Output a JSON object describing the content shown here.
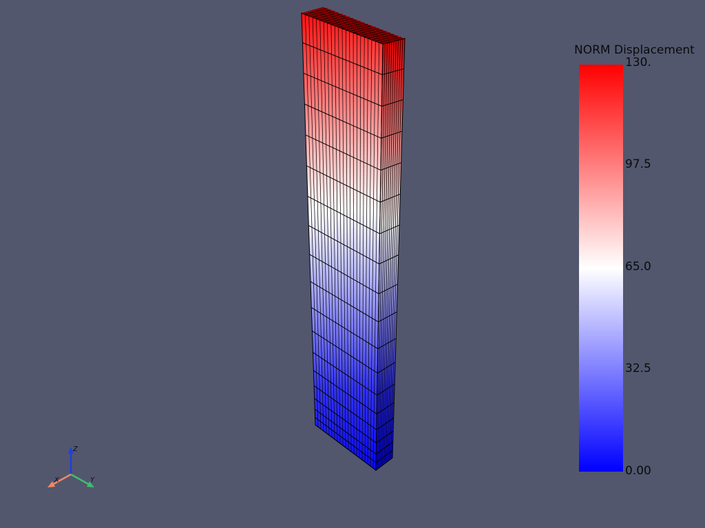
{
  "colorbar": {
    "title": "NORM Displacement",
    "ticks": [
      "130.",
      "97.5",
      "65.0",
      "32.5",
      "0.00"
    ],
    "min": 0,
    "max": 130,
    "colormap": [
      "#0000ff",
      "#ffffff",
      "#ff0000"
    ]
  },
  "axes": {
    "x_label": "X",
    "y_label": "Y",
    "z_label": "Z",
    "x_color": "#ee8866",
    "y_color": "#3dbf6e",
    "z_color": "#1f3fe0"
  },
  "colors": {
    "background": "#52576e",
    "mesh_edges": "#000000"
  }
}
